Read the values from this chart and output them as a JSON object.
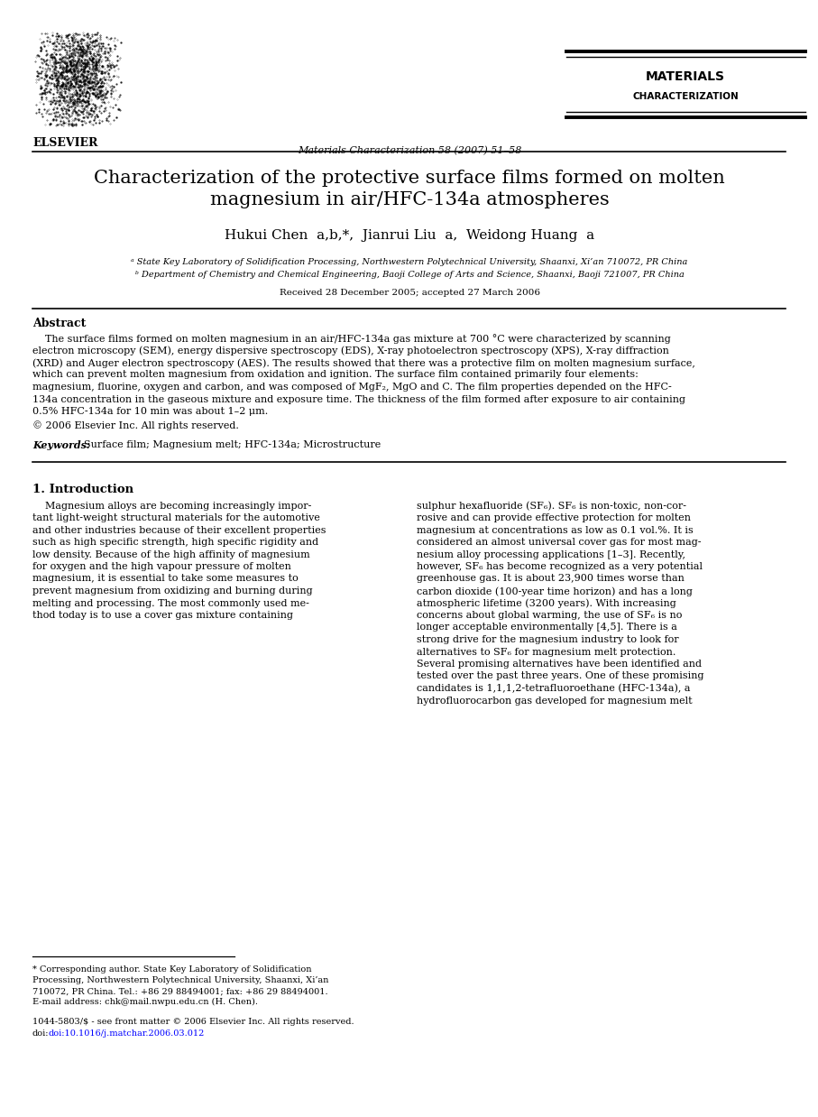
{
  "bg_color": "#ffffff",
  "page_width": 9.07,
  "page_height": 12.38,
  "dpi": 100,
  "elsevier_logo_text": "ELSEVIER",
  "journal_center_text": "Materials Characterization 58 (2007) 51–58",
  "journal_name_upper": "MATERIALS",
  "journal_name_lower": "CHARACTERIZATION",
  "article_title_line1": "Characterization of the protective surface films formed on molten",
  "article_title_line2": "magnesium in air/HFC-134a atmospheres",
  "authors": "Hukui Chen  a,b,*,  Jianrui Liu  a,  Weidong Huang  a",
  "affil_a": "ᵃ State Key Laboratory of Solidification Processing, Northwestern Polytechnical University, Shaanxi, Xi’an 710072, PR China",
  "affil_b": "ᵇ Department of Chemistry and Chemical Engineering, Baoji College of Arts and Science, Shaanxi, Baoji 721007, PR China",
  "received_text": "Received 28 December 2005; accepted 27 March 2006",
  "abstract_heading": "Abstract",
  "abstract_lines": [
    "    The surface films formed on molten magnesium in an air/HFC-134a gas mixture at 700 °C were characterized by scanning",
    "electron microscopy (SEM), energy dispersive spectroscopy (EDS), X-ray photoelectron spectroscopy (XPS), X-ray diffraction",
    "(XRD) and Auger electron spectroscopy (AES). The results showed that there was a protective film on molten magnesium surface,",
    "which can prevent molten magnesium from oxidation and ignition. The surface film contained primarily four elements:",
    "magnesium, fluorine, oxygen and carbon, and was composed of MgF₂, MgO and C. The film properties depended on the HFC-",
    "134a concentration in the gaseous mixture and exposure time. The thickness of the film formed after exposure to air containing",
    "0.5% HFC-134a for 10 min was about 1–2 μm."
  ],
  "copyright_text": "© 2006 Elsevier Inc. All rights reserved.",
  "keywords_label": "Keywords: ",
  "keywords_text": "Surface film; Magnesium melt; HFC-134a; Microstructure",
  "section1_heading": "1. Introduction",
  "col1_lines": [
    "    Magnesium alloys are becoming increasingly impor-",
    "tant light-weight structural materials for the automotive",
    "and other industries because of their excellent properties",
    "such as high specific strength, high specific rigidity and",
    "low density. Because of the high affinity of magnesium",
    "for oxygen and the high vapour pressure of molten",
    "magnesium, it is essential to take some measures to",
    "prevent magnesium from oxidizing and burning during",
    "melting and processing. The most commonly used me-",
    "thod today is to use a cover gas mixture containing"
  ],
  "col2_lines": [
    "sulphur hexafluoride (SF₆). SF₆ is non-toxic, non-cor-",
    "rosive and can provide effective protection for molten",
    "magnesium at concentrations as low as 0.1 vol.%. It is",
    "considered an almost universal cover gas for most mag-",
    "nesium alloy processing applications [1–3]. Recently,",
    "however, SF₆ has become recognized as a very potential",
    "greenhouse gas. It is about 23,900 times worse than",
    "carbon dioxide (100-year time horizon) and has a long",
    "atmospheric lifetime (3200 years). With increasing",
    "concerns about global warming, the use of SF₆ is no",
    "longer acceptable environmentally [4,5]. There is a",
    "strong drive for the magnesium industry to look for",
    "alternatives to SF₆ for magnesium melt protection.",
    "Several promising alternatives have been identified and",
    "tested over the past three years. One of these promising",
    "candidates is 1,1,1,2-tetrafluoroethane (HFC-134a), a",
    "hydrofluorocarbon gas developed for magnesium melt"
  ],
  "footnote_star_line1": "* Corresponding author. State Key Laboratory of Solidification",
  "footnote_star_line2": "Processing, Northwestern Polytechnical University, Shaanxi, Xi’an",
  "footnote_star_line3": "710072, PR China. Tel.: +86 29 88494001; fax: +86 29 88494001.",
  "footnote_email": "E-mail address: chk@mail.nwpu.edu.cn (H. Chen).",
  "footnote_issn": "1044-5803/$ - see front matter © 2006 Elsevier Inc. All rights reserved.",
  "footnote_doi": "doi:10.1016/j.matchar.2006.03.012",
  "footnote_doi_color": "#0000ff"
}
